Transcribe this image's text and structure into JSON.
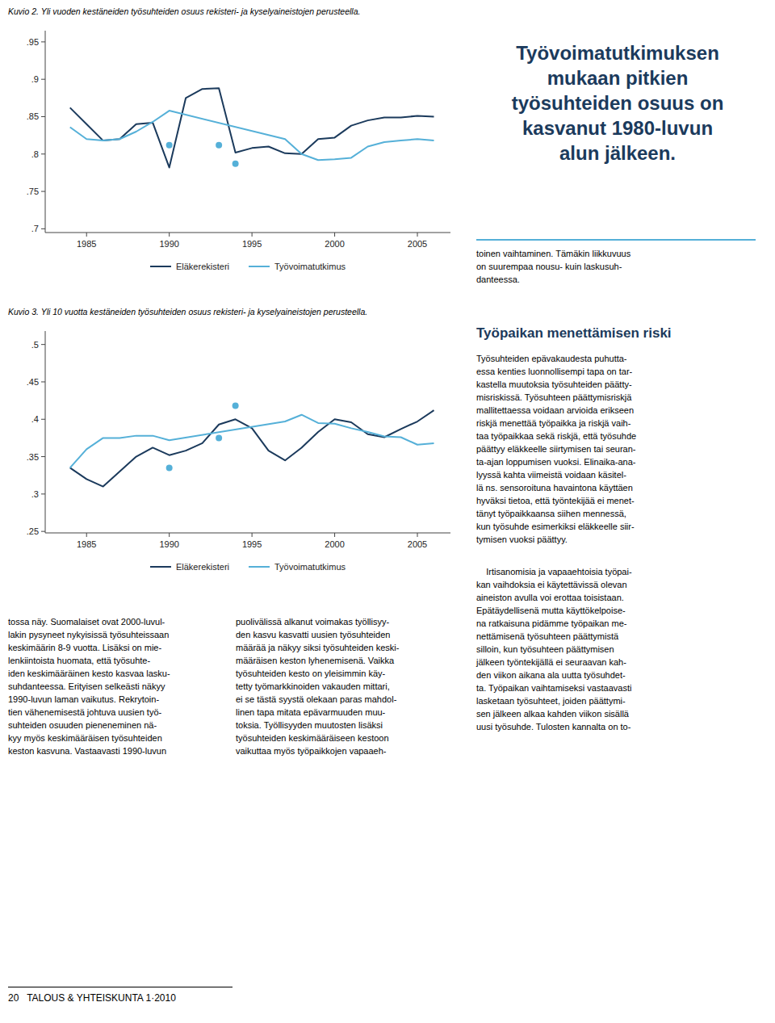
{
  "chart_data": [
    {
      "type": "line",
      "title": "Kuvio 2. Yli vuoden kestäneiden työsuhteiden osuus rekisteri- ja kyselyaineistojen perusteella.",
      "xlim": [
        1982.5,
        2007.0
      ],
      "xticks": [
        1985,
        1990,
        1995,
        2000,
        2005
      ],
      "ylim": [
        0.695,
        0.965
      ],
      "yticks": [
        {
          "value": 0.7,
          "label": ".7"
        },
        {
          "value": 0.75,
          "label": ".75"
        },
        {
          "value": 0.8,
          "label": ".8"
        },
        {
          "value": 0.85,
          "label": ".85"
        },
        {
          "value": 0.9,
          "label": ".9"
        },
        {
          "value": 0.95,
          "label": ".95"
        }
      ],
      "grid": false,
      "legend": "bottom",
      "series": [
        {
          "name": "Eläkerekisteri",
          "type": "line",
          "color": "#1b3a5c",
          "x": [
            1984,
            1985,
            1986,
            1987,
            1988,
            1989,
            1990,
            1991,
            1992,
            1993,
            1994,
            1995,
            1996,
            1997,
            1998,
            1999,
            2000,
            2001,
            2002,
            2003,
            2004,
            2005,
            2006
          ],
          "values": [
            0.862,
            0.84,
            0.818,
            0.82,
            0.84,
            0.842,
            0.782,
            0.875,
            0.887,
            0.888,
            0.802,
            0.808,
            0.81,
            0.801,
            0.8,
            0.82,
            0.822,
            0.838,
            0.845,
            0.849,
            0.849,
            0.851,
            0.85
          ]
        },
        {
          "name": "Työvoimatutkimus",
          "type": "line",
          "color": "#55b0d8",
          "x": [
            1984,
            1985,
            1986,
            1987,
            1988,
            1989,
            1990,
            1997,
            1998,
            1999,
            2000,
            2001,
            2002,
            2003,
            2004,
            2005,
            2006
          ],
          "values": [
            0.836,
            0.82,
            0.818,
            0.82,
            0.83,
            0.843,
            0.858,
            0.82,
            0.8,
            0.792,
            0.793,
            0.795,
            0.81,
            0.816,
            0.818,
            0.82,
            0.818
          ]
        },
        {
          "type": "scatter",
          "marker": "circle",
          "color": "#55b0d8",
          "x": [
            1990,
            1993,
            1994
          ],
          "values": [
            0.812,
            0.812,
            0.787
          ]
        }
      ]
    },
    {
      "type": "line",
      "title": "Kuvio 3. Yli 10 vuotta kestäneiden työsuhteiden osuus rekisteri- ja kyselyaineistojen perusteella.",
      "xlim": [
        1982.5,
        2007.0
      ],
      "xticks": [
        1985,
        1990,
        1995,
        2000,
        2005
      ],
      "ylim": [
        0.248,
        0.518
      ],
      "yticks": [
        {
          "value": 0.25,
          "label": ".25"
        },
        {
          "value": 0.3,
          "label": ".3"
        },
        {
          "value": 0.35,
          "label": ".35"
        },
        {
          "value": 0.4,
          "label": ".4"
        },
        {
          "value": 0.45,
          "label": ".45"
        },
        {
          "value": 0.5,
          "label": ".5"
        }
      ],
      "grid": false,
      "legend": "bottom",
      "series": [
        {
          "name": "Eläkerekisteri",
          "type": "line",
          "color": "#1b3a5c",
          "x": [
            1984,
            1985,
            1986,
            1987,
            1988,
            1989,
            1990,
            1991,
            1992,
            1993,
            1994,
            1995,
            1996,
            1997,
            1998,
            1999,
            2000,
            2001,
            2002,
            2003,
            2004,
            2005,
            2006
          ],
          "values": [
            0.335,
            0.32,
            0.31,
            0.33,
            0.35,
            0.362,
            0.352,
            0.358,
            0.368,
            0.393,
            0.4,
            0.388,
            0.358,
            0.345,
            0.362,
            0.383,
            0.4,
            0.396,
            0.38,
            0.376,
            0.387,
            0.397,
            0.412
          ]
        },
        {
          "name": "Työvoimatutkimus",
          "type": "line",
          "color": "#55b0d8",
          "x": [
            1984,
            1985,
            1986,
            1987,
            1988,
            1989,
            1990,
            1997,
            1998,
            1999,
            2000,
            2001,
            2002,
            2003,
            2004,
            2005,
            2006
          ],
          "values": [
            0.335,
            0.36,
            0.375,
            0.375,
            0.378,
            0.378,
            0.372,
            0.397,
            0.406,
            0.395,
            0.394,
            0.388,
            0.383,
            0.377,
            0.376,
            0.366,
            0.368
          ]
        },
        {
          "type": "scatter",
          "marker": "circle",
          "color": "#55b0d8",
          "x": [
            1990,
            1993,
            1994
          ],
          "values": [
            0.335,
            0.375,
            0.418
          ]
        }
      ]
    }
  ],
  "right_heading": "Työvoimatutkimuksen\nmukaan pitkien\ntyösuhteiden osuus on\nkasvanut 1980-luvun\nalun jälkeen.",
  "right_text_after_sep": "toinen vaihtaminen. Tämäkin liikkuvuus\non suurempaa nousu- kuin laskusuh-\ndanteessa.",
  "right_heading2": "Työpaikan menettämisen riski",
  "right_body_para1": "Työsuhteiden epävakaudesta puhutta-\nessa kenties luonnollisempi tapa on tar-\nkastella muutoksia työsuhteiden päätty-\nmisriskissä. Työsuhteen päättymisriskjä\nmallitettaessa voidaan arvioida erikseen\nriskjä menettää työpaikka ja riskjä vaih-\ntaa työpaikkaa sekä riskjä, että työsuhde\npäättyy eläkkeelle siirtymisen tai seuran-\nta-ajan loppumisen vuoksi. Elinaika-ana-\nlyyssä kahta viimeistä voidaan käsitel-\nlä ns. sensoroituna havaintona käyttäen\nhyväksi tietoa, että työntekijää ei menet-\ntänyt työpaikkaansa siihen mennessä,\nkun työsuhde esimerkiksi eläkkeelle siir-\ntymisen vuoksi päättyy.",
  "right_body_para2": "    Irtisanomisia ja vapaaehtoisia työpai-\nkan vaihdoksia ei käytettävissä olevan\naineiston avulla voi erottaa toisistaan.\nEpätäydellisenä mutta käyttökelpoise-\nna ratkaisuna pidämme työpaikan me-\nnettämisenä työsuhteen päättymistä\nsilloin, kun työsuhteen päättymisen\njälkeen työntekijällä ei seuraavan kah-\nden viikon aikana ala uutta työsuhdet-\nta. Työpaikan vaihtamiseksi vastaavasti\nlasketaan työsuhteet, joiden päättymi-\nsen jälkeen alkaa kahden viikon sisällä\nuusi työsuhde. Tulosten kannalta on to-",
  "bottom_left": "tossa näy. Suomalaiset ovat 2000-luvul-\nlakin pysyneet nykyisissä työsuhteissaan\nkeskimäärin 8-9 vuotta. Lisäksi on mie-\nlenkiintoista huomata, että työsuhte-\niden keskimääräinen kesto kasvaa lasku-\nsuhdanteessa. Erityisen selkeästi näkyy\n1990-luvun laman vaikutus. Rekrytoin-\ntien vähenemisestä johtuva uusien työ-\nsuhteiden osuuden pieneneminen nä-\nkyy myös keskimääräisen työsuhteiden\nkeston kasvuna. Vastaavasti 1990-luvun",
  "bottom_mid": "puolivälissä alkanut voimakas työllisyy-\nden kasvu kasvatti uusien työsuhteiden\nmäärää ja näkyy siksi työsuhteiden keski-\nmääräisen keston lyhenemisenä. Vaikka\ntyösuhteiden kesto on yleisimmin käy-\ntetty työmarkkinoiden vakauden mittari,\nei se tästä syystä olekaan paras mahdol-\nlinen tapa mitata epävarmuuden muu-\ntoksia. Työllisyyden muutosten lisäksi\ntyösuhteiden keskimääräiseen kestoon\nvaikuttaa myös työpaikkojen vapaaeh-",
  "footer": "20   TALOUS & YHTEISKUNTA 1·2010"
}
